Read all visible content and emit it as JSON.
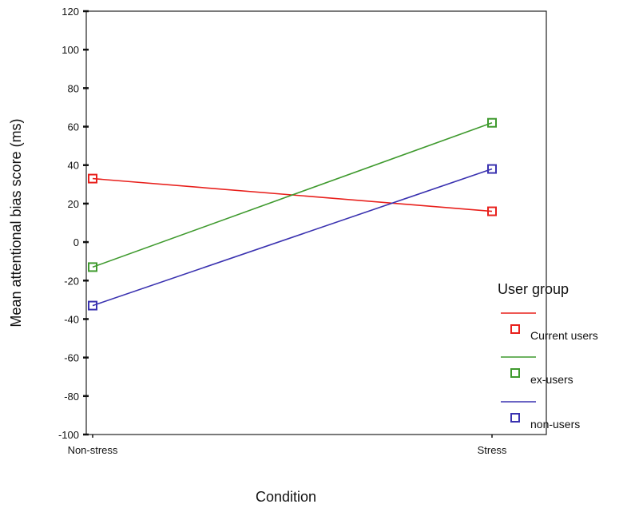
{
  "chart_data": {
    "type": "line",
    "title": "",
    "xlabel": "Condition",
    "ylabel": "Mean attentional bias score (ms)",
    "categories": [
      "Non-stress",
      "Stress"
    ],
    "ylim": [
      -100,
      120
    ],
    "yticks": [
      120,
      100,
      80,
      60,
      40,
      20,
      0,
      -20,
      -40,
      -60,
      -80,
      -100
    ],
    "grid": false,
    "legend": {
      "title": "User group",
      "placement": "right"
    },
    "series": [
      {
        "name": "Current users",
        "values": [
          33,
          16
        ],
        "color": "#e8201c"
      },
      {
        "name": "ex-users",
        "values": [
          -13,
          62
        ],
        "color": "#3f9a2e"
      },
      {
        "name": "non-users",
        "values": [
          -33,
          38
        ],
        "color": "#3a32b0"
      }
    ]
  }
}
